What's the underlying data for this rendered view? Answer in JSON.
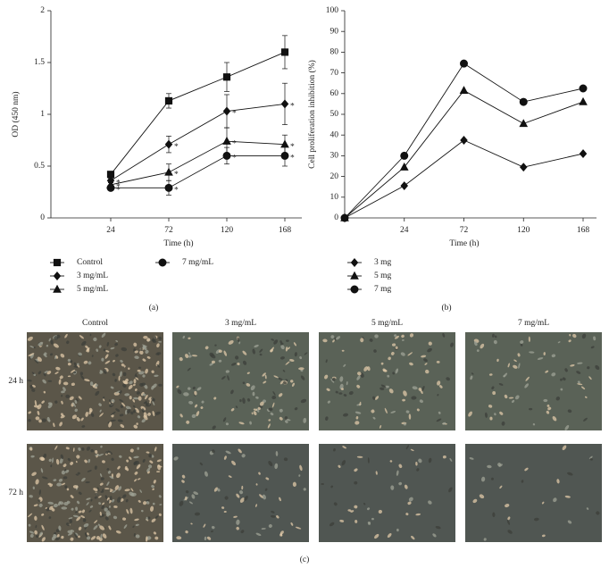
{
  "chart_data": [
    {
      "type": "line",
      "panel_label": "(a)",
      "xlabel": "Time (h)",
      "ylabel": "OD (450 nm)",
      "categories": [
        "24",
        "72",
        "120",
        "168"
      ],
      "ylim": [
        0,
        2
      ],
      "yticks": [
        0,
        0.5,
        1,
        1.5,
        2
      ],
      "series": [
        {
          "name": "Control",
          "color": "#111111",
          "marker": "square",
          "values": [
            0.42,
            1.13,
            1.36,
            1.6
          ],
          "errors": [
            0.02,
            0.07,
            0.14,
            0.16
          ]
        },
        {
          "name": "3 mg/mL",
          "color": "#111111",
          "marker": "diamond",
          "values": [
            0.36,
            0.71,
            1.03,
            1.1
          ],
          "errors": [
            0.02,
            0.08,
            0.16,
            0.2
          ],
          "annotation": "*"
        },
        {
          "name": "5 mg/mL",
          "color": "#111111",
          "marker": "triangle",
          "values": [
            0.32,
            0.44,
            0.74,
            0.71
          ],
          "errors": [
            0.02,
            0.08,
            0.13,
            0.09
          ],
          "annotation": "*"
        },
        {
          "name": "7 mg/mL",
          "color": "#111111",
          "marker": "circle",
          "values": [
            0.29,
            0.29,
            0.6,
            0.6
          ],
          "errors": [
            0.02,
            0.07,
            0.08,
            0.1
          ],
          "annotation": "*"
        }
      ]
    },
    {
      "type": "line",
      "panel_label": "(b)",
      "xlabel": "Time (h)",
      "ylabel": "Cell proliferation inhibition (%)",
      "categories": [
        null,
        "24",
        "72",
        "120",
        "168"
      ],
      "ylim": [
        0,
        100
      ],
      "yticks": [
        0,
        10,
        20,
        30,
        40,
        50,
        60,
        70,
        80,
        90,
        100
      ],
      "series": [
        {
          "name": "3 mg",
          "color": "#111111",
          "marker": "diamond",
          "values": [
            0,
            15.5,
            37.5,
            24.5,
            31
          ]
        },
        {
          "name": "5 mg",
          "color": "#111111",
          "marker": "triangle",
          "values": [
            0,
            24.5,
            61.5,
            45.5,
            56
          ]
        },
        {
          "name": "7 mg",
          "color": "#111111",
          "marker": "circle",
          "values": [
            0,
            30,
            74.5,
            56,
            62.5
          ]
        }
      ]
    }
  ],
  "image_panel": {
    "panel_label": "(c)",
    "columns": [
      "Control",
      "3 mg/mL",
      "5 mg/mL",
      "7 mg/mL"
    ],
    "rows": [
      "24 h",
      "72 h"
    ]
  }
}
